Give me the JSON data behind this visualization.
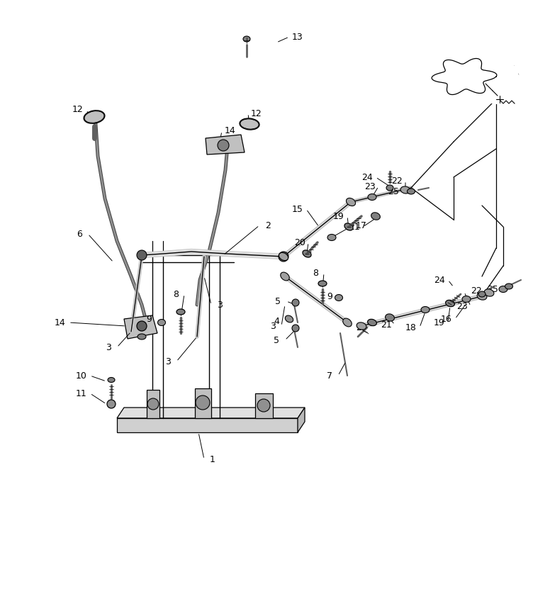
{
  "background_color": "#ffffff",
  "fig_width": 7.52,
  "fig_height": 8.55,
  "dpi": 100
}
